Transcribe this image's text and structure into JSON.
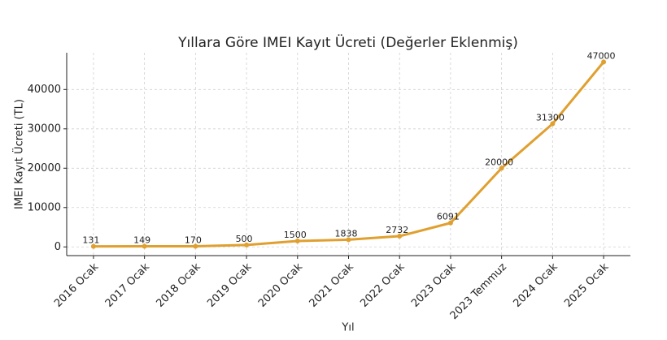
{
  "chart_data": {
    "type": "line",
    "title": "Yıllara Göre IMEI Kayıt Ücreti (Değerler Eklenmiş)",
    "x_label": "Yıl",
    "y_label": "IMEI Kayıt Ücreti (TL)",
    "categories": [
      "2016 Ocak",
      "2017 Ocak",
      "2018 Ocak",
      "2019 Ocak",
      "2020 Ocak",
      "2021 Ocak",
      "2022 Ocak",
      "2023 Ocak",
      "2023 Temmuz",
      "2024 Ocak",
      "2025 Ocak"
    ],
    "values": [
      131,
      149,
      170,
      500,
      1500,
      1838,
      2732,
      6091,
      20000,
      31300,
      47000
    ],
    "color": "#e0a030",
    "ylim": [
      -2212,
      49343
    ],
    "yticks": [
      0,
      10000,
      20000,
      30000,
      40000
    ],
    "grid": true
  }
}
